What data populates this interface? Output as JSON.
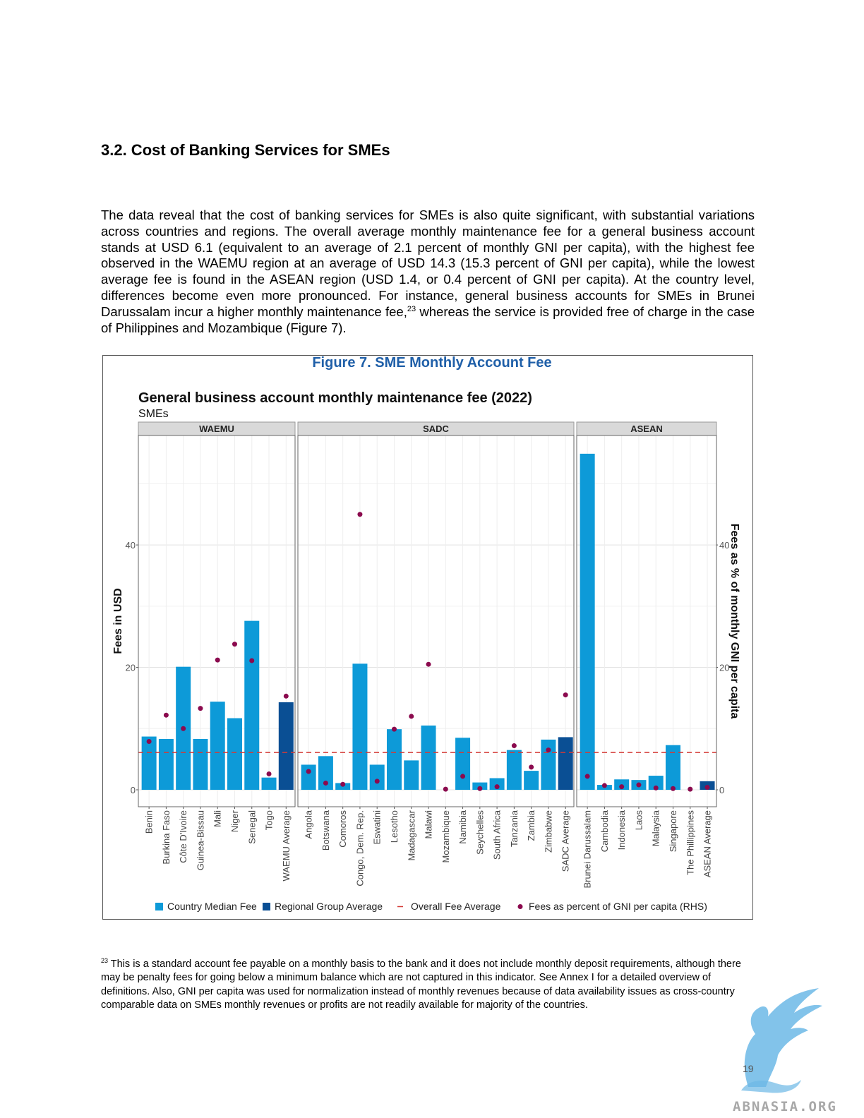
{
  "section": {
    "heading": "3.2. Cost of Banking Services for SMEs"
  },
  "paragraph": {
    "text_before": "The data reveal that the cost of banking services for SMEs is also quite significant, with substantial variations across countries and regions. The overall average monthly maintenance fee for a general business account stands at USD 6.1 (equivalent to an average of 2.1 percent of monthly GNI per capita), with the highest fee observed in the WAEMU region at an average of USD 14.3 (15.3 percent of GNI per capita), while the lowest average fee is found in the ASEAN region (USD 1.4, or 0.4 percent of GNI per capita). At the country level, differences become even more pronounced. For instance, general business accounts for SMEs in Brunei Darussalam incur a higher monthly maintenance fee,",
    "footnote_ref": "23",
    "text_after": " whereas the service is provided free of charge in the case of Philippines and Mozambique (Figure 7)."
  },
  "figure": {
    "caption": "Figure 7. SME Monthly Account Fee"
  },
  "chart_data": {
    "type": "bar",
    "title": "General business account monthly maintenance fee (2022)",
    "subtitle": "SMEs",
    "ylabel": "Fees in USD",
    "y2label": "Fees as % of monthly GNI per capita",
    "ylim": [
      0,
      55
    ],
    "yticks": [
      "0",
      "20",
      "40"
    ],
    "overall_fee_average": 6.1,
    "grid": true,
    "legend_position": "bottom",
    "colors": {
      "country": "#0d9ad8",
      "regional": "#0a4f94",
      "overall": "#d43a36",
      "gni": "#8b0a4e"
    },
    "legend": [
      "Country Median Fee",
      "Regional Group Average",
      "Overall Fee Average",
      "Fees as percent of GNI per capita (RHS)"
    ],
    "panels": [
      {
        "name": "WAEMU",
        "categories": [
          "Benin",
          "Burkina Faso",
          "Côte D'Ivoire",
          "Guinea-Bissau",
          "Mali",
          "Niger",
          "Senegal",
          "Togo",
          "WAEMU Average"
        ],
        "values": [
          8.7,
          8.3,
          20.1,
          8.3,
          14.4,
          11.7,
          27.6,
          2.0,
          14.3
        ],
        "gni_pct": [
          7.9,
          12.2,
          10.0,
          13.3,
          21.2,
          23.8,
          21.1,
          2.6,
          15.3
        ],
        "is_average": [
          false,
          false,
          false,
          false,
          false,
          false,
          false,
          false,
          true
        ]
      },
      {
        "name": "SADC",
        "categories": [
          "Angola",
          "Botswana",
          "Comoros",
          "Congo, Dem. Rep.",
          "Eswatini",
          "Lesotho",
          "Madagascar",
          "Malawi",
          "Mozambique",
          "Namibia",
          "Seychelles",
          "South Africa",
          "Tanzania",
          "Zambia",
          "Zimbabwe",
          "SADC Average"
        ],
        "values": [
          4.1,
          5.5,
          1.1,
          20.6,
          4.1,
          9.9,
          4.8,
          10.5,
          0.0,
          8.5,
          1.2,
          1.9,
          6.5,
          3.1,
          8.2,
          8.6
        ],
        "gni_pct": [
          3.0,
          1.1,
          0.9,
          45.0,
          1.4,
          9.9,
          12.0,
          20.5,
          0.1,
          2.2,
          0.2,
          0.5,
          7.2,
          3.7,
          6.5,
          15.5
        ],
        "is_average": [
          false,
          false,
          false,
          false,
          false,
          false,
          false,
          false,
          false,
          false,
          false,
          false,
          false,
          false,
          false,
          true
        ]
      },
      {
        "name": "ASEAN",
        "categories": [
          "Brunei Darussalam",
          "Cambodia",
          "Indonesia",
          "Laos",
          "Malaysia",
          "Singapore",
          "The Phillippines",
          "ASEAN Average"
        ],
        "values": [
          54.9,
          0.8,
          1.7,
          1.6,
          2.3,
          7.3,
          0.0,
          1.4
        ],
        "gni_pct": [
          2.2,
          0.7,
          0.5,
          0.8,
          0.3,
          0.2,
          0.1,
          0.4
        ],
        "is_average": [
          false,
          false,
          false,
          false,
          false,
          false,
          false,
          true
        ]
      }
    ]
  },
  "footnote": {
    "marker": "23",
    "text": " This is a standard account fee payable on a monthly basis to the bank and it does not include monthly deposit requirements, although there may be penalty fees for going below a minimum balance which are not captured in this indicator. See Annex I for a detailed overview of definitions. Also, GNI per capita was used for normalization instead of monthly revenues because of data availability issues as cross-country comparable data on SMEs monthly revenues or profits are not readily available for majority of the countries."
  },
  "page_number": "19",
  "watermark": {
    "text": "ABNASIA.ORG",
    "icon": "griffin-logo-icon"
  }
}
